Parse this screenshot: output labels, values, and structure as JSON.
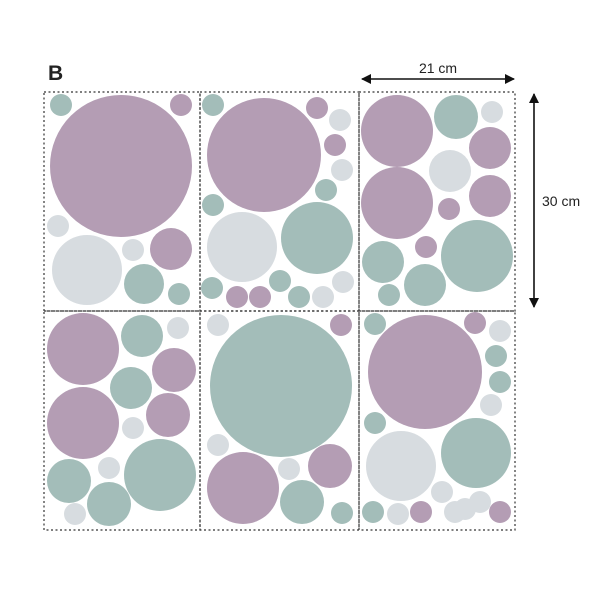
{
  "panel_label": "B",
  "dimensions": {
    "width": "21 cm",
    "height": "30 cm"
  },
  "colors": {
    "purple": "#b49db4",
    "teal": "#a3bdb9",
    "grey": "#d7dce0",
    "border": "#333333",
    "arrow": "#111111"
  },
  "sheets": [
    {
      "name": "sheet-top-left"
    },
    {
      "name": "sheet-top-middle"
    },
    {
      "name": "sheet-top-right"
    },
    {
      "name": "sheet-bottom-left"
    },
    {
      "name": "sheet-bottom-middle"
    },
    {
      "name": "sheet-bottom-right"
    }
  ]
}
